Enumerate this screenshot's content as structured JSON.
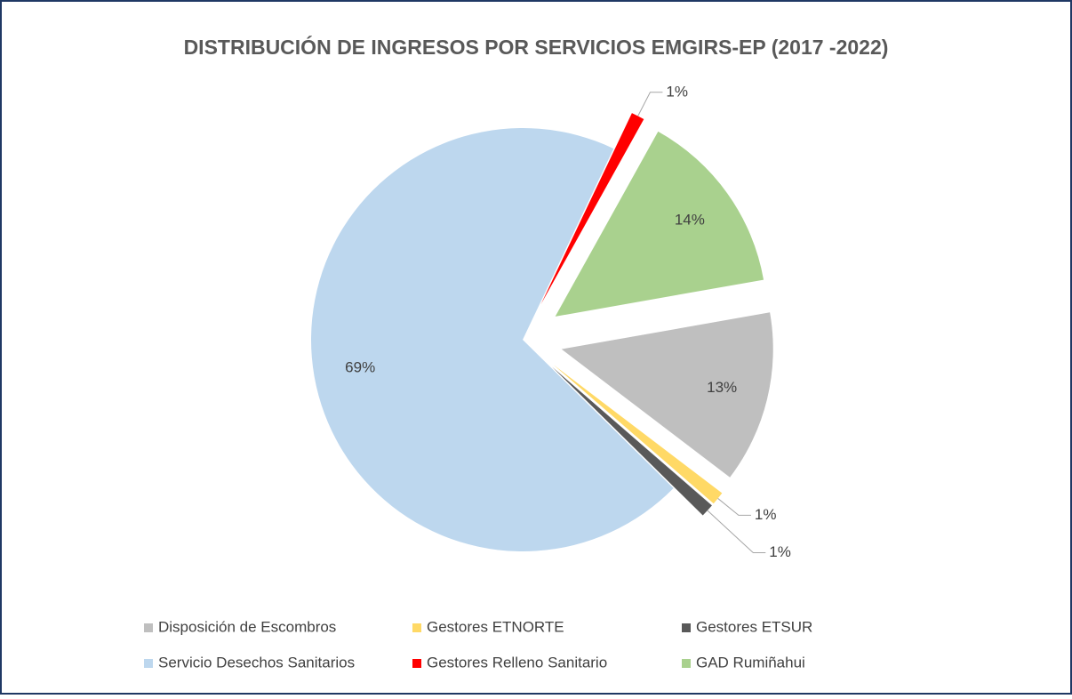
{
  "chart_data": {
    "type": "pie",
    "title": "DISTRIBUCIÓN DE INGRESOS POR SERVICIOS EMGIRS-EP (2017 -2022)",
    "categories": [
      "Disposición de Escombros",
      "Gestores ETNORTE",
      "Gestores ETSUR",
      "Servicio Desechos Sanitarios",
      "Gestores Relleno Sanitario",
      "GAD Rumiñahui"
    ],
    "values": [
      13,
      1,
      1,
      69,
      1,
      14
    ],
    "value_labels": [
      "13%",
      "1%",
      "1%",
      "69%",
      "1%",
      "14%"
    ],
    "colors": [
      "#bfbfbf",
      "#ffd966",
      "#595959",
      "#bdd7ee",
      "#ff0000",
      "#a9d18e"
    ],
    "legend": "bottom"
  }
}
